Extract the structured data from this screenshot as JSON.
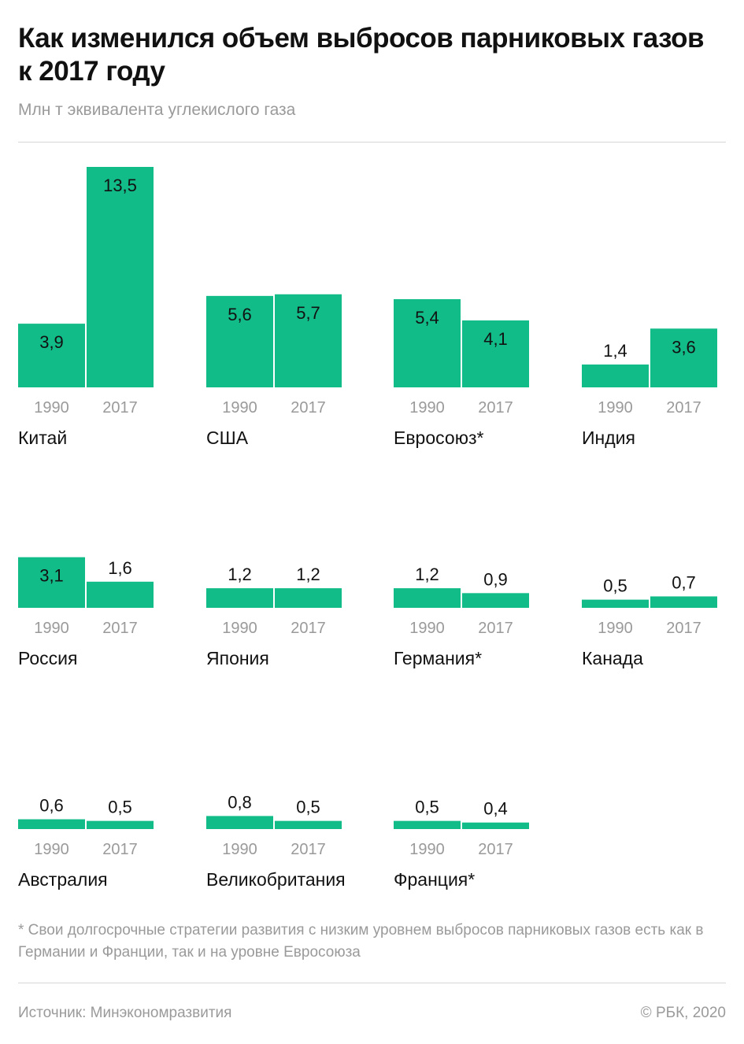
{
  "title": "Как изменился объем выбросов парниковых газов к 2017 году",
  "subtitle": "Млн т эквивалента углекислого газа",
  "footnote": "* Свои долгосрочные стратегии развития с низким уровнем выбросов парниковых газов есть как в Германии и Франции, так и на уровне Евросоюза",
  "source": "Источник: Минэкономразвития",
  "copyright": "© РБК, 2020",
  "colors": {
    "bar": "#12bc88",
    "value_text": "#111111",
    "year_text": "#9a9a9a"
  },
  "chart_data": [
    {
      "type": "bar",
      "title": "Китай",
      "categories": [
        "1990",
        "2017"
      ],
      "values": [
        3.9,
        13.5
      ],
      "labels": [
        "3,9",
        "13,5"
      ]
    },
    {
      "type": "bar",
      "title": "США",
      "categories": [
        "1990",
        "2017"
      ],
      "values": [
        5.6,
        5.7
      ],
      "labels": [
        "5,6",
        "5,7"
      ]
    },
    {
      "type": "bar",
      "title": "Евросоюз*",
      "categories": [
        "1990",
        "2017"
      ],
      "values": [
        5.4,
        4.1
      ],
      "labels": [
        "5,4",
        "4,1"
      ]
    },
    {
      "type": "bar",
      "title": "Индия",
      "categories": [
        "1990",
        "2017"
      ],
      "values": [
        1.4,
        3.6
      ],
      "labels": [
        "1,4",
        "3,6"
      ]
    },
    {
      "type": "bar",
      "title": "Россия",
      "categories": [
        "1990",
        "2017"
      ],
      "values": [
        3.1,
        1.6
      ],
      "labels": [
        "3,1",
        "1,6"
      ]
    },
    {
      "type": "bar",
      "title": "Япония",
      "categories": [
        "1990",
        "2017"
      ],
      "values": [
        1.2,
        1.2
      ],
      "labels": [
        "1,2",
        "1,2"
      ]
    },
    {
      "type": "bar",
      "title": "Германия*",
      "categories": [
        "1990",
        "2017"
      ],
      "values": [
        1.2,
        0.9
      ],
      "labels": [
        "1,2",
        "0,9"
      ]
    },
    {
      "type": "bar",
      "title": "Канада",
      "categories": [
        "1990",
        "2017"
      ],
      "values": [
        0.5,
        0.7
      ],
      "labels": [
        "0,5",
        "0,7"
      ]
    },
    {
      "type": "bar",
      "title": "Австралия",
      "categories": [
        "1990",
        "2017"
      ],
      "values": [
        0.6,
        0.5
      ],
      "labels": [
        "0,6",
        "0,5"
      ]
    },
    {
      "type": "bar",
      "title": "Великобритания",
      "categories": [
        "1990",
        "2017"
      ],
      "values": [
        0.8,
        0.5
      ],
      "labels": [
        "0,8",
        "0,5"
      ]
    },
    {
      "type": "bar",
      "title": "Франция*",
      "categories": [
        "1990",
        "2017"
      ],
      "values": [
        0.5,
        0.4
      ],
      "labels": [
        "0,5",
        "0,4"
      ]
    }
  ]
}
